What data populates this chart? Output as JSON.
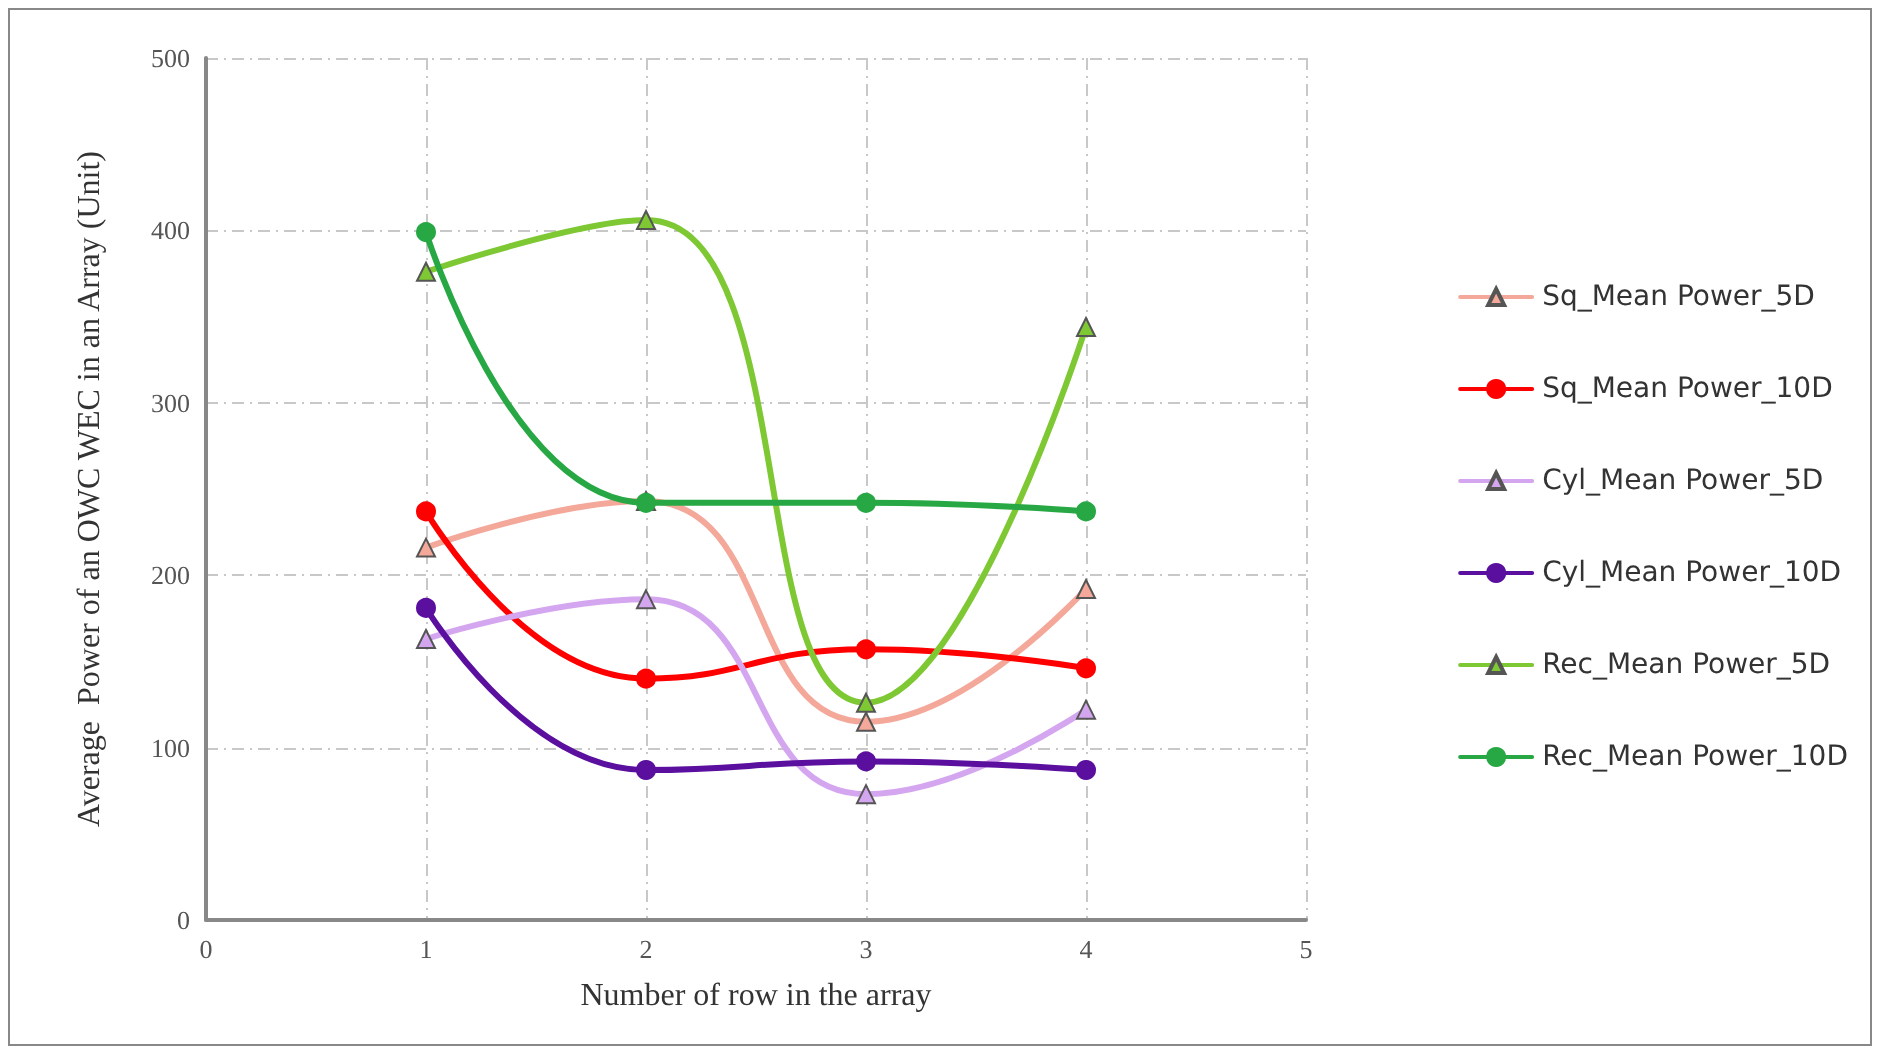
{
  "chart_data": {
    "type": "line",
    "xlabel": "Number of row in the array",
    "ylabel": "Average  Power of an OWC WEC in an Array (Unit)",
    "x": [
      1,
      2,
      3,
      4
    ],
    "series": [
      {
        "name": "Sq_Mean Power_5D",
        "color": "#f4a89a",
        "marker": "triangle",
        "values": [
          216,
          243,
          115,
          192
        ]
      },
      {
        "name": "Sq_Mean Power_10D",
        "color": "#ff0000",
        "marker": "circle",
        "values": [
          237,
          140,
          157,
          146
        ]
      },
      {
        "name": "Cyl_Mean Power_5D",
        "color": "#d4a6f0",
        "marker": "triangle",
        "values": [
          163,
          186,
          73,
          122
        ]
      },
      {
        "name": "Cyl_Mean Power_10D",
        "color": "#5b0f9e",
        "marker": "circle",
        "values": [
          181,
          87,
          92,
          87
        ]
      },
      {
        "name": "Rec_Mean Power_5D",
        "color": "#7ec834",
        "marker": "triangle",
        "values": [
          376,
          406,
          126,
          344
        ]
      },
      {
        "name": "Rec_Mean Power_10D",
        "color": "#27a844",
        "marker": "circle",
        "values": [
          399,
          242,
          242,
          237
        ]
      }
    ],
    "xlim": [
      0,
      5
    ],
    "xticks": [
      0,
      1,
      2,
      3,
      4,
      5
    ],
    "ylim": [
      0,
      500
    ],
    "yticks": [
      0,
      100,
      200,
      300,
      400,
      500
    ],
    "grid": true,
    "legend": "right"
  }
}
